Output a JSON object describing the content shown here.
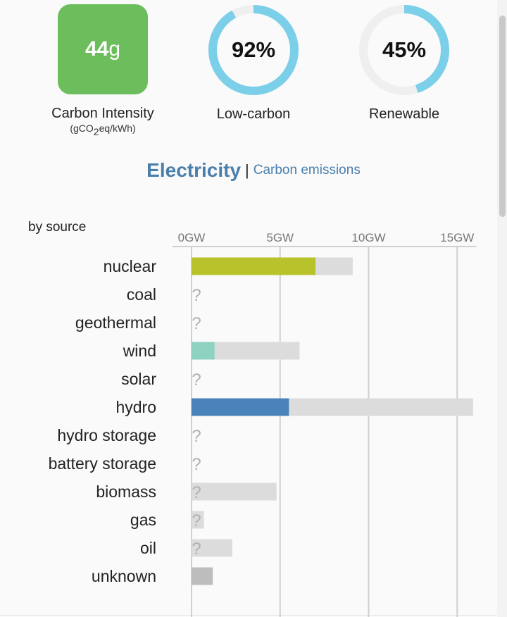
{
  "kpis": {
    "carbon_intensity": {
      "value": "44",
      "unit": "g",
      "label": "Carbon Intensity",
      "sublabel_pre": "(gCO",
      "sublabel_sub": "2",
      "sublabel_post": "eq/kWh)",
      "color": "#6cbd5b"
    },
    "low_carbon": {
      "percent_text": "92%",
      "percent": 92,
      "label": "Low-carbon",
      "color": "#7ccfe8"
    },
    "renewable": {
      "percent_text": "45%",
      "percent": 45,
      "label": "Renewable",
      "color": "#7ccfe8"
    }
  },
  "header": {
    "title": "Electricity",
    "separator": "|",
    "link": "Carbon emissions"
  },
  "section_label": "by source",
  "chart_data": {
    "type": "bar",
    "orientation": "horizontal",
    "xlabel": "",
    "ylabel": "",
    "x_ticks": [
      "0GW",
      "5GW",
      "10GW",
      "15GW"
    ],
    "xlim": [
      0,
      16
    ],
    "unknown_symbol": "?",
    "categories": [
      "nuclear",
      "coal",
      "geothermal",
      "wind",
      "solar",
      "hydro",
      "hydro storage",
      "battery storage",
      "biomass",
      "gas",
      "oil",
      "unknown"
    ],
    "series": [
      {
        "values": [
          7.0,
          0,
          0,
          1.3,
          0,
          5.5,
          0,
          0,
          0,
          0,
          0,
          1.2
        ]
      },
      {
        "values": [
          9.1,
          null,
          null,
          6.1,
          null,
          15.9,
          null,
          null,
          4.8,
          0.7,
          2.3,
          null
        ]
      }
    ],
    "unknown_production": [
      false,
      true,
      true,
      false,
      true,
      false,
      true,
      true,
      true,
      true,
      true,
      false
    ],
    "colors": [
      "#b8c32b",
      null,
      null,
      "#8ed3c1",
      null,
      "#4a83ba",
      null,
      null,
      null,
      null,
      null,
      "#bdbdbd"
    ],
    "capacity_color": "#dcdcdc"
  }
}
